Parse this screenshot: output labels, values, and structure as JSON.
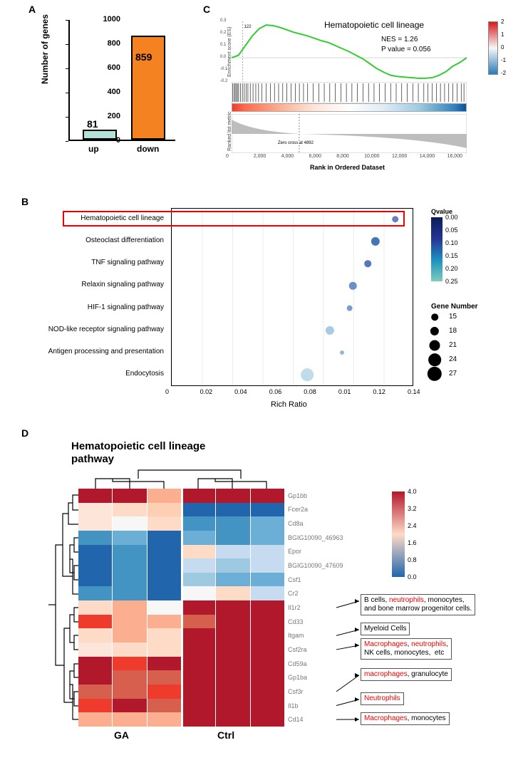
{
  "panels": {
    "a": "A",
    "b": "B",
    "c": "C",
    "d": "D"
  },
  "panelA": {
    "ylabel": "Number of genes",
    "categories": [
      "up",
      "down"
    ],
    "values": [
      81,
      859
    ],
    "bar_labels": [
      "81",
      "859"
    ],
    "bar_colors": [
      "#b2e2d8",
      "#f58220"
    ],
    "bar_stroke": "#000000",
    "yticks": [
      0,
      200,
      400,
      600,
      800,
      1000
    ],
    "ylim": [
      0,
      1000
    ]
  },
  "panelC": {
    "title": "Hematopoietic cell lineage",
    "nes_label": "NES = 1.26",
    "pval_label": "P value = 0.056",
    "es_ylabel": "Enrichment score (ES)",
    "rank_ylabel": "Ranked list metric",
    "xlabel": "Rank in Ordered Dataset",
    "zero_cross": "Zero cross at 4892",
    "peak_label": "122",
    "xticks": [
      0,
      2000,
      4000,
      6000,
      8000,
      10000,
      12000,
      14000,
      16000
    ],
    "es_yticks": [
      -0.2,
      -0.1,
      0.0,
      0.1,
      0.2,
      0.3
    ],
    "es_path": [
      0,
      0.02,
      0.1,
      0.18,
      0.24,
      0.27,
      0.265,
      0.25,
      0.23,
      0.21,
      0.195,
      0.18,
      0.16,
      0.14,
      0.125,
      0.1,
      0.075,
      0.05,
      0.02,
      -0.01,
      -0.05,
      -0.09,
      -0.12,
      -0.145,
      -0.155,
      -0.16,
      -0.165,
      -0.17,
      -0.17,
      -0.165,
      -0.145,
      -0.115,
      -0.07,
      -0.04,
      0.0
    ],
    "hit_positions": [
      80,
      180,
      260,
      350,
      420,
      510,
      650,
      780,
      920,
      1050,
      1180,
      1350,
      1550,
      1750,
      1950,
      2200,
      2500,
      2800,
      3100,
      3400,
      3700,
      4000,
      4300,
      4600,
      4900,
      5200,
      5500,
      5900,
      6300,
      6700,
      7100,
      7500,
      7900,
      8300,
      8700,
      9100,
      9500,
      9900,
      10300,
      10700,
      11100,
      11500,
      11900,
      12300,
      12700,
      13100,
      13500,
      13900,
      14200,
      14500,
      14800,
      15100,
      15400,
      15700,
      16000,
      16300,
      16600,
      16800
    ],
    "x_max": 17000,
    "zero_cross_x": 4892,
    "colorbar_ticks": [
      "2",
      "1",
      "0",
      "-1",
      "-2"
    ],
    "es_line_color": "#33cc33",
    "rank_fill": "#bdbdbd"
  },
  "panelB": {
    "xlabel": "Rich Ratio",
    "xticks": [
      "0",
      "0.02",
      "0.04",
      "0.06",
      "0.08",
      "0.01",
      "0.12",
      "0.14"
    ],
    "pathways": [
      {
        "name": "Hematopoietic cell lineage",
        "x": 0.148,
        "qcolor": "#6a7fc3",
        "size": 15
      },
      {
        "name": "Osteoclast differentiation",
        "x": 0.135,
        "qcolor": "#4575b4",
        "size": 18
      },
      {
        "name": "TNF signaling pathway",
        "x": 0.13,
        "qcolor": "#5378c0",
        "size": 15
      },
      {
        "name": "Relaxin signaling pathway",
        "x": 0.12,
        "qcolor": "#6d8fc9",
        "size": 16
      },
      {
        "name": "HIF-1 signaling pathway",
        "x": 0.118,
        "qcolor": "#7b9cd0",
        "size": 14
      },
      {
        "name": "NOD-like receptor signaling pathway",
        "x": 0.105,
        "qcolor": "#a6cbe3",
        "size": 18
      },
      {
        "name": "Antigen processing and presentation",
        "x": 0.113,
        "qcolor": "#93b9da",
        "size": 11
      },
      {
        "name": "Endocytosis",
        "x": 0.09,
        "qcolor": "#c0dceb",
        "size": 24
      }
    ],
    "x_max": 0.16,
    "qvalue_title": "Qvalue",
    "qvalue_ticks": [
      "0.00",
      "0.05",
      "0.10",
      "0.15",
      "0.20",
      "0.25"
    ],
    "gene_number_title": "Gene Number",
    "gene_number_legend": [
      15,
      18,
      21,
      24,
      27
    ],
    "highlight_index": 0
  },
  "panelD": {
    "title_l1": "Hematopoietic cell lineage",
    "title_l2": "pathway",
    "group_labels": [
      "GA",
      "Ctrl"
    ],
    "genes": [
      "Gp1bb",
      "Fcer2a",
      "Cd8a",
      "BGIG10090_46963",
      "Epor",
      "BGIG10090_47609",
      "Csf1",
      "Cr2",
      "Il1r2",
      "Cd33",
      "Itgam",
      "Csf2ra",
      "Cd59a",
      "Gp1ba",
      "Csf3r",
      "Il1b",
      "Cd14"
    ],
    "cells": [
      [
        "#b2182b",
        "#b2182b",
        "#fcae91",
        "#b2182b",
        "#b2182b",
        "#b2182b"
      ],
      [
        "#fee5d9",
        "#fddbc7",
        "#fdd0b4",
        "#2166ac",
        "#2166ac",
        "#2166ac"
      ],
      [
        "#fee5d9",
        "#f7f7f7",
        "#fddbc7",
        "#4393c3",
        "#4393c3",
        "#6baed6"
      ],
      [
        "#4393c3",
        "#6baed6",
        "#2166ac",
        "#6baed6",
        "#4393c3",
        "#6baed6"
      ],
      [
        "#2166ac",
        "#4393c3",
        "#2166ac",
        "#fddbc7",
        "#c6dbef",
        "#c6dbef"
      ],
      [
        "#2166ac",
        "#4393c3",
        "#2166ac",
        "#c6dbef",
        "#9ecae1",
        "#c6dbef"
      ],
      [
        "#2166ac",
        "#4393c3",
        "#2166ac",
        "#9ecae1",
        "#6baed6",
        "#6baed6"
      ],
      [
        "#4393c3",
        "#4393c3",
        "#2166ac",
        "#f7f7f7",
        "#fddbc7",
        "#c6dbef"
      ],
      [
        "#fddbc7",
        "#fcae91",
        "#f7f7f7",
        "#b2182b",
        "#b2182b",
        "#b2182b"
      ],
      [
        "#ef3b2c",
        "#fcae91",
        "#fcae91",
        "#d6604d",
        "#b2182b",
        "#b2182b"
      ],
      [
        "#fddbc7",
        "#fcae91",
        "#fddbc7",
        "#b2182b",
        "#b2182b",
        "#b2182b"
      ],
      [
        "#fee5d9",
        "#fddbc7",
        "#fddbc7",
        "#b2182b",
        "#b2182b",
        "#b2182b"
      ],
      [
        "#b2182b",
        "#ef3b2c",
        "#b2182b",
        "#b2182b",
        "#b2182b",
        "#b2182b"
      ],
      [
        "#b2182b",
        "#d6604d",
        "#d6604d",
        "#b2182b",
        "#b2182b",
        "#b2182b"
      ],
      [
        "#d6604d",
        "#d6604d",
        "#ef3b2c",
        "#b2182b",
        "#b2182b",
        "#b2182b"
      ],
      [
        "#ef3b2c",
        "#b2182b",
        "#d6604d",
        "#b2182b",
        "#b2182b",
        "#b2182b"
      ],
      [
        "#fcae91",
        "#fcae91",
        "#fcae91",
        "#b2182b",
        "#b2182b",
        "#b2182b"
      ]
    ],
    "colorbar_ticks": [
      "4.0",
      "3.2",
      "2.4",
      "1.6",
      "0.8",
      "0.0"
    ],
    "annotations": [
      {
        "gene": "Il1r2",
        "html": "B cells, <span class='red'>neutrophils</span>, monocytes,<br>and bone marrow progenitor cells."
      },
      {
        "gene": "Itgam",
        "html": "Myeloid Cells"
      },
      {
        "gene": "Csf2ra",
        "html": "<span class='red'>Macrophages</span>, <span class='red'>neutrophils</span>,<br>NK cells, monocytes, &nbsp;etc"
      },
      {
        "gene": "Csf3r",
        "html": "<span class='red'>macrophages</span>, granulocyte"
      },
      {
        "gene": "Il1b",
        "html": "<span class='red'>Neutrophils</span>"
      },
      {
        "gene": "Cd14",
        "html": "<span class='red'>Macrophages</span>, monocytes"
      }
    ]
  }
}
